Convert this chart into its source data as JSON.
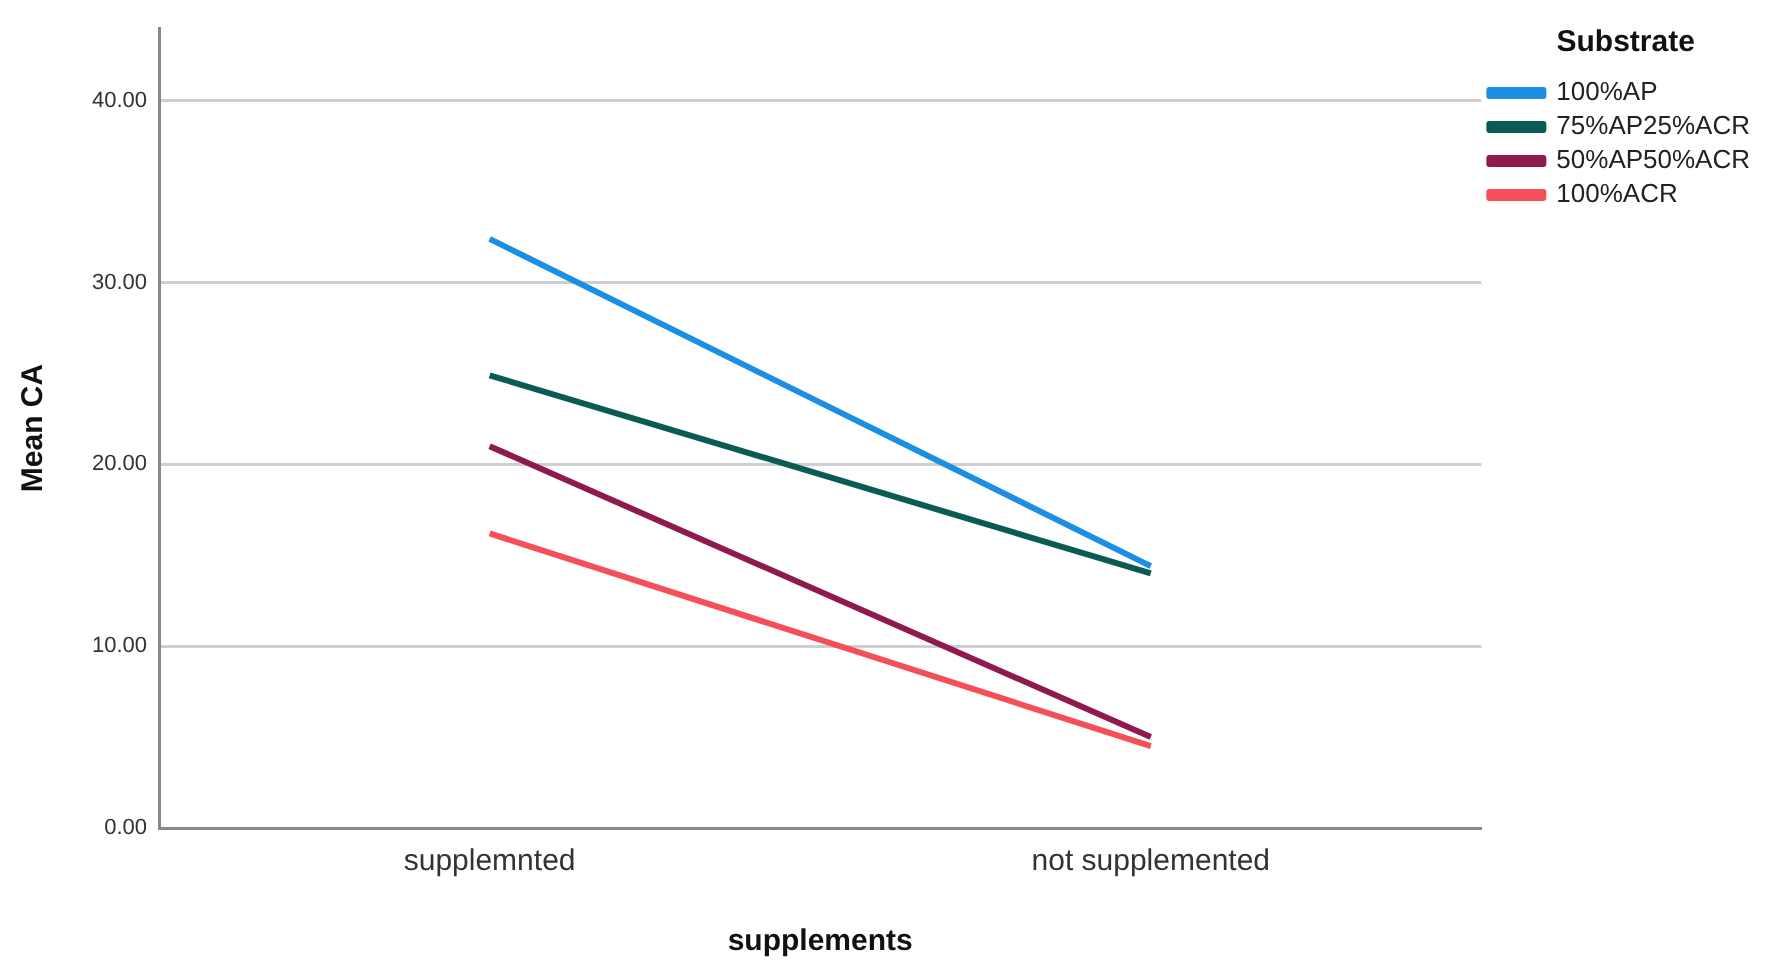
{
  "chart_data": {
    "type": "line",
    "xlabel": "supplements",
    "ylabel": "Mean CA",
    "legend_title": "Substrate",
    "legend": "top right",
    "grid": "y",
    "marker": "none",
    "line_style": "solid",
    "categories": [
      "supplemnted",
      "not supplemented"
    ],
    "ylim": [
      0,
      44
    ],
    "yticks": [
      {
        "value": 0,
        "label": "0.00"
      },
      {
        "value": 10,
        "label": "10.00"
      },
      {
        "value": 20,
        "label": "20.00"
      },
      {
        "value": 30,
        "label": "30.00"
      },
      {
        "value": 40,
        "label": "40.00"
      }
    ],
    "series": [
      {
        "name": "100%AP",
        "color": "#1a8fe3",
        "values": [
          32.4,
          14.4
        ]
      },
      {
        "name": "75%AP25%ACR",
        "color": "#0b5b55",
        "values": [
          24.9,
          14.0
        ]
      },
      {
        "name": "50%AP50%ACR",
        "color": "#8e1a50",
        "values": [
          21.0,
          5.0
        ]
      },
      {
        "name": "100%ACR",
        "color": "#f5505a",
        "values": [
          16.2,
          4.5
        ]
      }
    ]
  }
}
